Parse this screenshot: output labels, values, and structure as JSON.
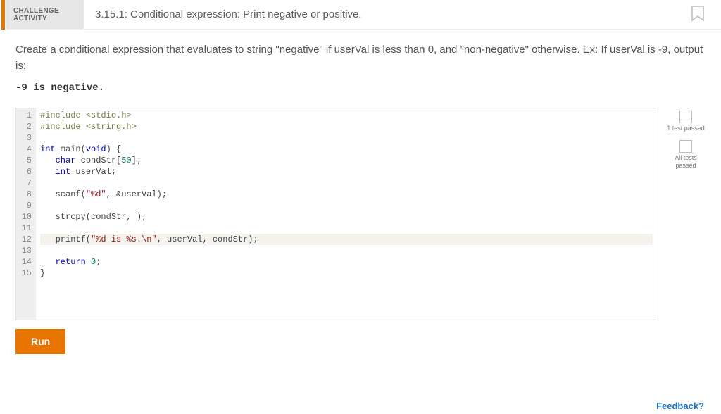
{
  "header": {
    "challenge_line1": "CHALLENGE",
    "challenge_line2": "ACTIVITY",
    "title": "3.15.1: Conditional expression: Print negative or positive."
  },
  "instructions": "Create a conditional expression that evaluates to string \"negative\" if userVal is less than 0, and \"non-negative\" otherwise. Ex: If userVal is -9, output is:",
  "example_output": "-9 is negative.",
  "code": {
    "highlight_line": 12,
    "lines": [
      {
        "n": 1,
        "segments": [
          {
            "t": "#include ",
            "c": "pre"
          },
          {
            "t": "<stdio.h>",
            "c": "pre"
          }
        ]
      },
      {
        "n": 2,
        "segments": [
          {
            "t": "#include ",
            "c": "pre"
          },
          {
            "t": "<string.h>",
            "c": "pre"
          }
        ]
      },
      {
        "n": 3,
        "segments": [
          {
            "t": "",
            "c": ""
          }
        ]
      },
      {
        "n": 4,
        "segments": [
          {
            "t": "int",
            "c": "typ"
          },
          {
            "t": " main(",
            "c": ""
          },
          {
            "t": "void",
            "c": "typ"
          },
          {
            "t": ") {",
            "c": ""
          }
        ]
      },
      {
        "n": 5,
        "segments": [
          {
            "t": "   ",
            "c": ""
          },
          {
            "t": "char",
            "c": "typ"
          },
          {
            "t": " condStr[",
            "c": ""
          },
          {
            "t": "50",
            "c": "num"
          },
          {
            "t": "];",
            "c": ""
          }
        ]
      },
      {
        "n": 6,
        "segments": [
          {
            "t": "   ",
            "c": ""
          },
          {
            "t": "int",
            "c": "typ"
          },
          {
            "t": " userVal;",
            "c": ""
          }
        ]
      },
      {
        "n": 7,
        "segments": [
          {
            "t": "",
            "c": ""
          }
        ]
      },
      {
        "n": 8,
        "segments": [
          {
            "t": "   scanf(",
            "c": ""
          },
          {
            "t": "\"%d\"",
            "c": "str"
          },
          {
            "t": ", &userVal);",
            "c": ""
          }
        ]
      },
      {
        "n": 9,
        "segments": [
          {
            "t": "",
            "c": ""
          }
        ]
      },
      {
        "n": 10,
        "segments": [
          {
            "t": "   strcpy(condStr, );",
            "c": ""
          }
        ]
      },
      {
        "n": 11,
        "segments": [
          {
            "t": "",
            "c": ""
          }
        ]
      },
      {
        "n": 12,
        "segments": [
          {
            "t": "   printf(",
            "c": ""
          },
          {
            "t": "\"%d is %s.\\n\"",
            "c": "str"
          },
          {
            "t": ", userVal, condStr);",
            "c": ""
          }
        ]
      },
      {
        "n": 13,
        "segments": [
          {
            "t": "",
            "c": ""
          }
        ]
      },
      {
        "n": 14,
        "segments": [
          {
            "t": "   ",
            "c": ""
          },
          {
            "t": "return",
            "c": "kw"
          },
          {
            "t": " ",
            "c": ""
          },
          {
            "t": "0",
            "c": "num"
          },
          {
            "t": ";",
            "c": ""
          }
        ]
      },
      {
        "n": 15,
        "segments": [
          {
            "t": "}",
            "c": ""
          }
        ]
      }
    ]
  },
  "status": {
    "item1_label": "1 test\npassed",
    "item2_label": "All tests\npassed"
  },
  "buttons": {
    "run": "Run"
  },
  "feedback_link": "Feedback?"
}
